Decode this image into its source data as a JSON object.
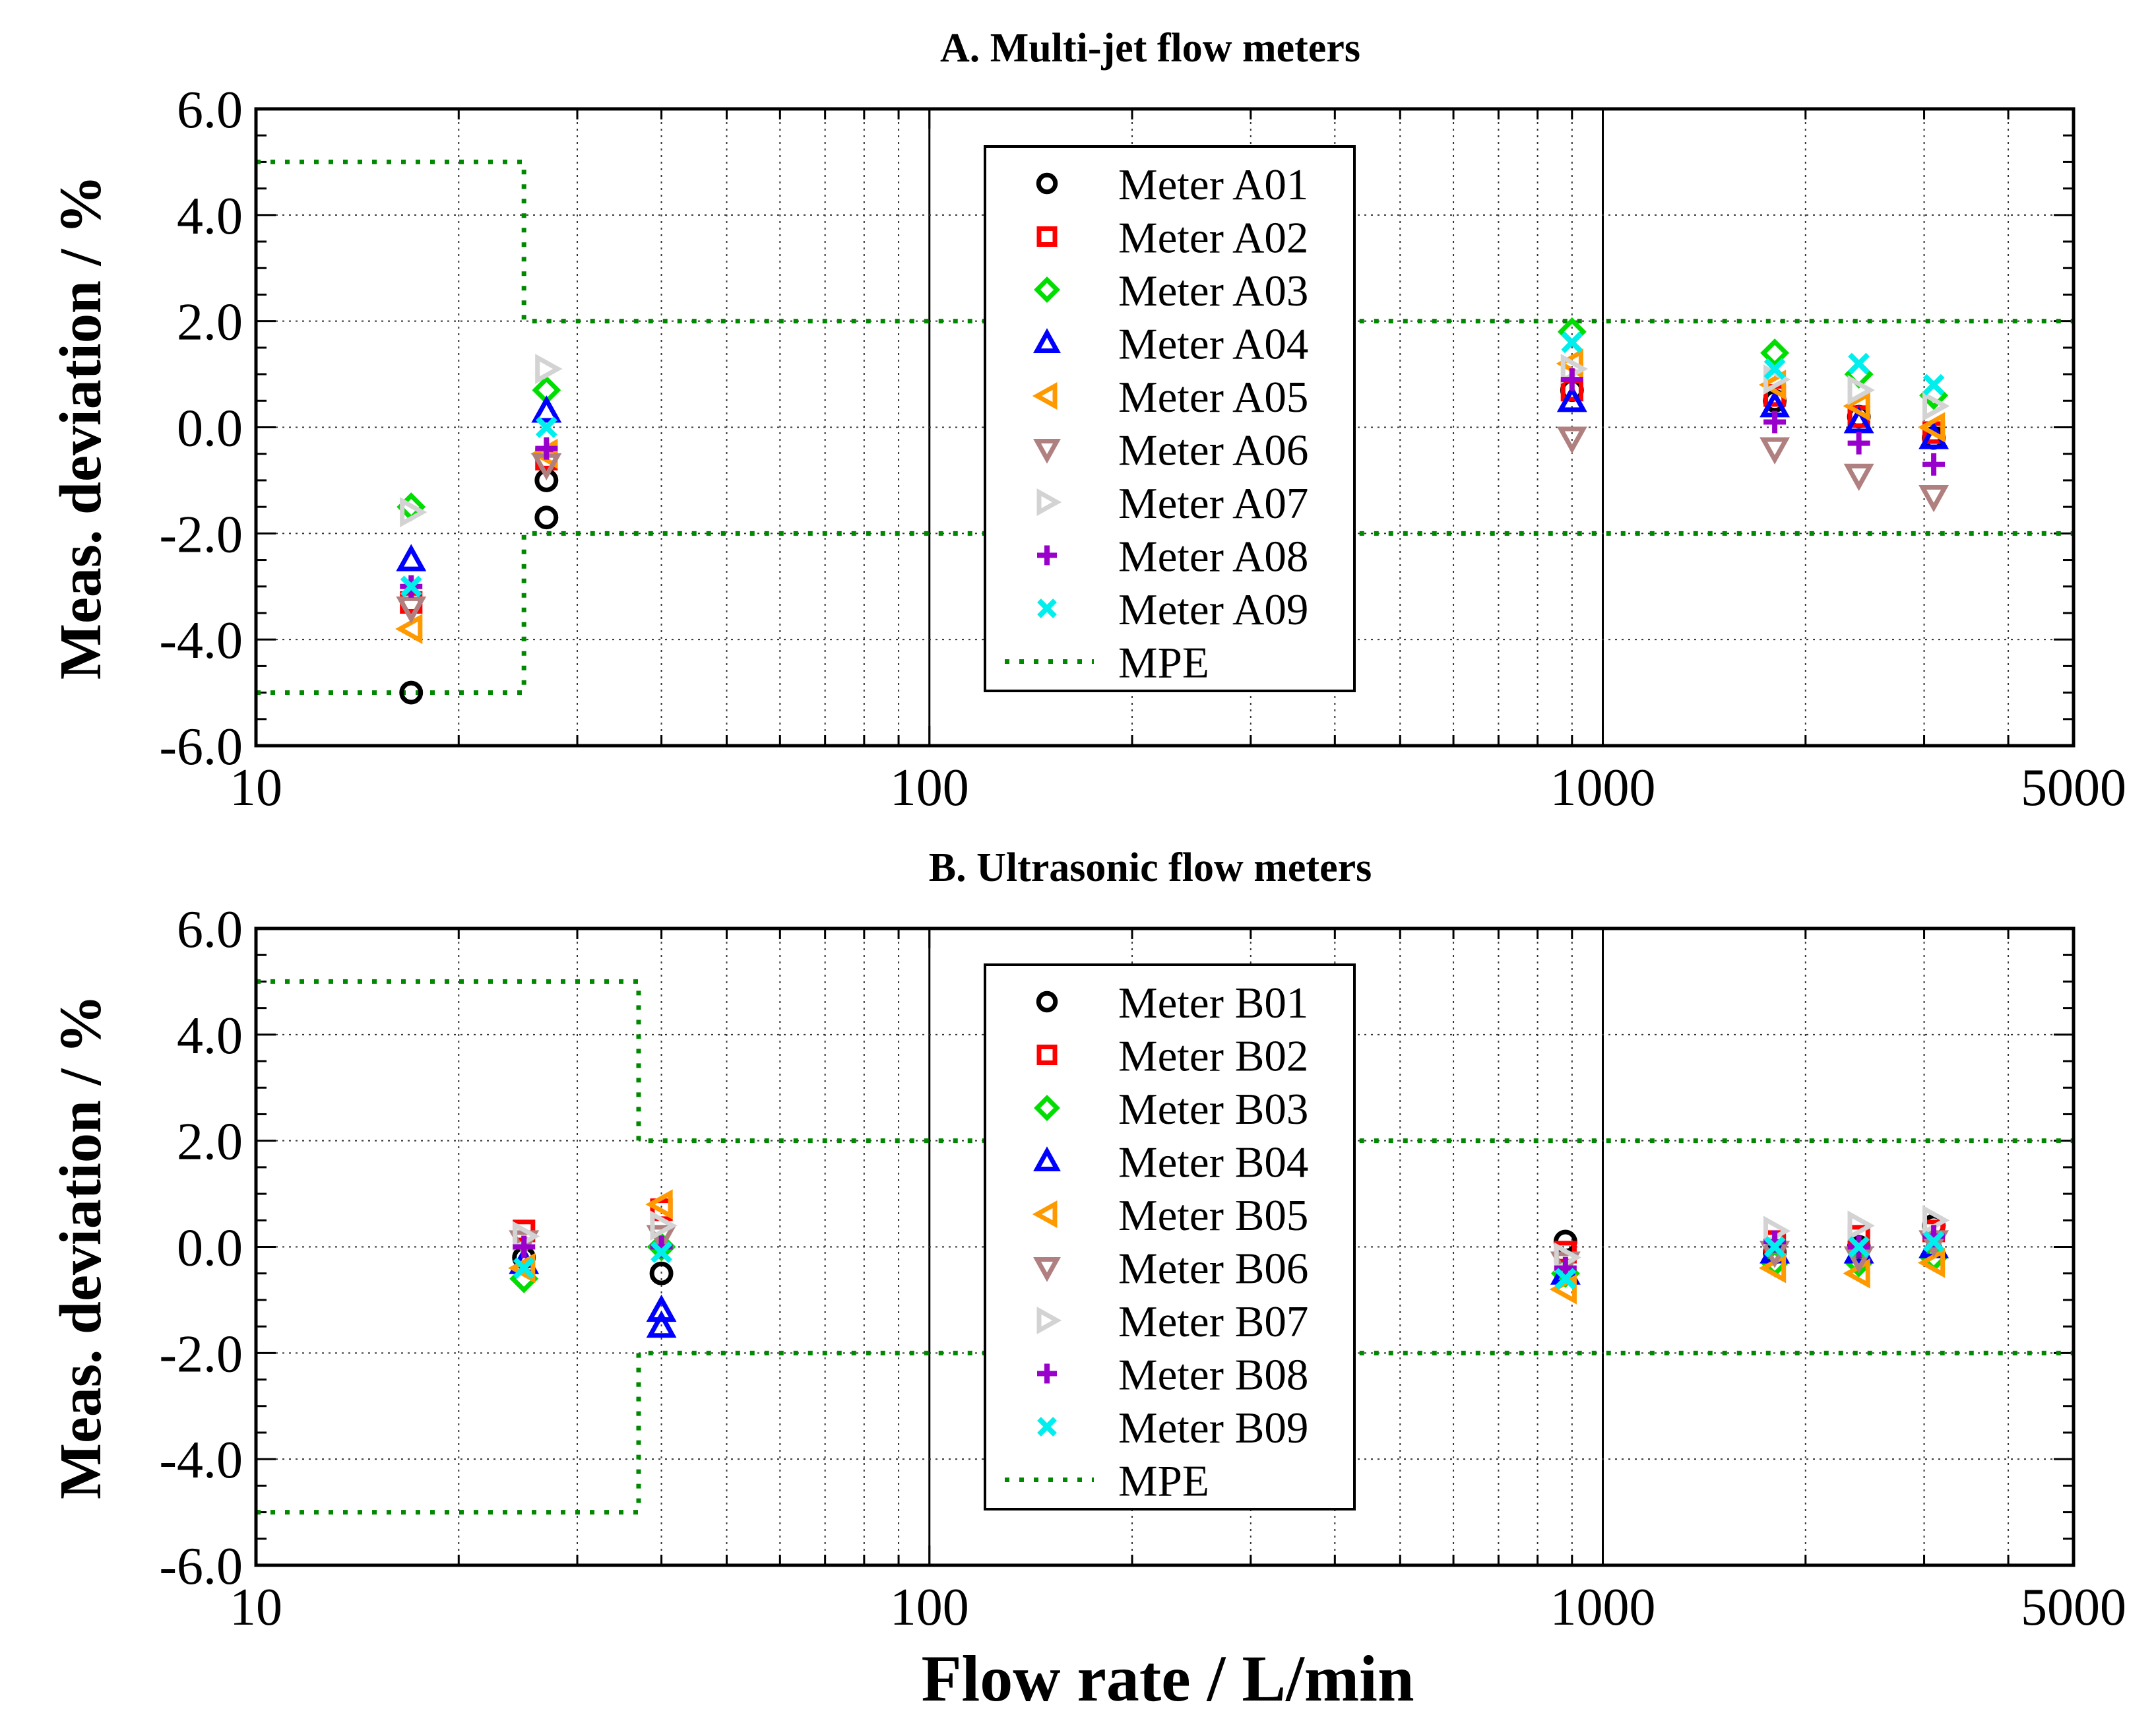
{
  "chart_data": [
    {
      "type": "scatter",
      "title": "A. Multi-jet flow meters",
      "xlabel": "",
      "ylabel": "Meas. deviation / %",
      "xscale": "log",
      "xlim": [
        10,
        5000
      ],
      "ylim": [
        -6,
        6
      ],
      "xticks": [
        "10",
        "100",
        "1000",
        "5000"
      ],
      "yticks": [
        "6.0",
        "4.0",
        "2.0",
        "0.0",
        "-2.0",
        "-4.0",
        "-6.0"
      ],
      "grid": true,
      "legend": "top-center",
      "series": [
        {
          "name": "Meter A01",
          "marker": "circle",
          "color": "#000000",
          "x": [
            17,
            27,
            27,
            900,
            1800,
            2400,
            3100
          ],
          "y": [
            -5.0,
            -1.7,
            -1.0,
            0.7,
            0.5,
            0.2,
            -0.2
          ]
        },
        {
          "name": "Meter A02",
          "marker": "square",
          "color": "#ff0000",
          "x": [
            17,
            27,
            900,
            1800,
            2400,
            3100
          ],
          "y": [
            -3.3,
            -0.6,
            0.7,
            0.6,
            0.2,
            -0.1
          ]
        },
        {
          "name": "Meter A03",
          "marker": "diamond",
          "color": "#00dd00",
          "x": [
            17,
            27,
            900,
            1800,
            2400,
            3100
          ],
          "y": [
            -1.5,
            0.7,
            1.8,
            1.4,
            1.0,
            0.6
          ]
        },
        {
          "name": "Meter A04",
          "marker": "triangle-up",
          "color": "#0000ff",
          "x": [
            17,
            27,
            900,
            1800,
            2400,
            3100
          ],
          "y": [
            -2.5,
            0.3,
            0.5,
            0.4,
            0.1,
            -0.2
          ]
        },
        {
          "name": "Meter A05",
          "marker": "triangle-left",
          "color": "#ff9900",
          "x": [
            17,
            27,
            900,
            1800,
            2400,
            3100
          ],
          "y": [
            -3.8,
            -0.5,
            1.2,
            0.8,
            0.4,
            0.0
          ]
        },
        {
          "name": "Meter A06",
          "marker": "triangle-down",
          "color": "#b08080",
          "x": [
            17,
            27,
            900,
            1800,
            2400,
            3100
          ],
          "y": [
            -3.4,
            -0.7,
            -0.2,
            -0.4,
            -0.9,
            -1.3
          ]
        },
        {
          "name": "Meter A07",
          "marker": "triangle-right",
          "color": "#d3d3d3",
          "x": [
            17,
            27,
            900,
            1800,
            2400,
            3100
          ],
          "y": [
            -1.6,
            1.1,
            1.1,
            0.9,
            0.7,
            0.4
          ]
        },
        {
          "name": "Meter A08",
          "marker": "plus",
          "color": "#9900cc",
          "x": [
            17,
            27,
            900,
            1800,
            2400,
            3100
          ],
          "y": [
            -3.0,
            -0.4,
            0.9,
            0.1,
            -0.3,
            -0.7
          ]
        },
        {
          "name": "Meter A09",
          "marker": "cross",
          "color": "#00eeee",
          "x": [
            17,
            27,
            900,
            1800,
            2400,
            3100
          ],
          "y": [
            -3.0,
            0.0,
            1.6,
            1.1,
            1.2,
            0.8
          ]
        }
      ],
      "mpe": {
        "name": "MPE",
        "color": "#008800",
        "x_transition": 25,
        "low_flow_limit": 5.0,
        "high_flow_limit": 2.0
      }
    },
    {
      "type": "scatter",
      "title": "B. Ultrasonic flow meters",
      "xlabel": "Flow rate / L/min",
      "ylabel": "Meas. deviation / %",
      "xscale": "log",
      "xlim": [
        10,
        5000
      ],
      "ylim": [
        -6,
        6
      ],
      "xticks": [
        "10",
        "100",
        "1000",
        "5000"
      ],
      "yticks": [
        "6.0",
        "4.0",
        "2.0",
        "0.0",
        "-2.0",
        "-4.0",
        "-6.0"
      ],
      "grid": true,
      "legend": "top-center",
      "series": [
        {
          "name": "Meter B01",
          "marker": "circle",
          "color": "#000000",
          "x": [
            25,
            40,
            880,
            1800,
            2400,
            3100
          ],
          "y": [
            -0.2,
            -0.5,
            0.1,
            -0.1,
            0.0,
            0.4
          ]
        },
        {
          "name": "Meter B02",
          "marker": "square",
          "color": "#ff0000",
          "x": [
            25,
            40,
            880,
            1800,
            2400,
            3100
          ],
          "y": [
            0.3,
            0.7,
            -0.1,
            0.1,
            0.2,
            0.3
          ]
        },
        {
          "name": "Meter B03",
          "marker": "diamond",
          "color": "#00dd00",
          "x": [
            25,
            40,
            880,
            1800,
            2400,
            3100
          ],
          "y": [
            -0.6,
            0.0,
            -0.5,
            -0.3,
            -0.3,
            -0.2
          ]
        },
        {
          "name": "Meter B04",
          "marker": "triangle-up",
          "color": "#0000ff",
          "x": [
            25,
            40,
            40,
            880,
            1800,
            2400,
            3100
          ],
          "y": [
            -0.3,
            -1.2,
            -1.5,
            -0.5,
            -0.1,
            -0.1,
            0.0
          ]
        },
        {
          "name": "Meter B05",
          "marker": "triangle-left",
          "color": "#ff9900",
          "x": [
            25,
            40,
            880,
            1800,
            2400,
            3100
          ],
          "y": [
            -0.4,
            0.8,
            -0.8,
            -0.4,
            -0.5,
            -0.3
          ]
        },
        {
          "name": "Meter B06",
          "marker": "triangle-down",
          "color": "#b08080",
          "x": [
            25,
            40,
            880,
            1800,
            2400,
            3100
          ],
          "y": [
            0.1,
            0.2,
            -0.3,
            -0.1,
            -0.2,
            0.1
          ]
        },
        {
          "name": "Meter B07",
          "marker": "triangle-right",
          "color": "#d3d3d3",
          "x": [
            25,
            40,
            880,
            1800,
            2400,
            3100
          ],
          "y": [
            0.2,
            0.4,
            -0.2,
            0.3,
            0.4,
            0.5
          ]
        },
        {
          "name": "Meter B08",
          "marker": "plus",
          "color": "#9900cc",
          "x": [
            25,
            40,
            880,
            1800,
            2400,
            3100
          ],
          "y": [
            0.0,
            0.0,
            -0.4,
            0.1,
            0.0,
            0.2
          ]
        },
        {
          "name": "Meter B09",
          "marker": "cross",
          "color": "#00eeee",
          "x": [
            25,
            40,
            880,
            1800,
            2400,
            3100
          ],
          "y": [
            -0.4,
            -0.1,
            -0.6,
            0.0,
            0.0,
            0.1
          ]
        }
      ],
      "mpe": {
        "name": "MPE",
        "color": "#008800",
        "x_transition": 37,
        "low_flow_limit": 5.0,
        "high_flow_limit": 2.0
      }
    }
  ]
}
